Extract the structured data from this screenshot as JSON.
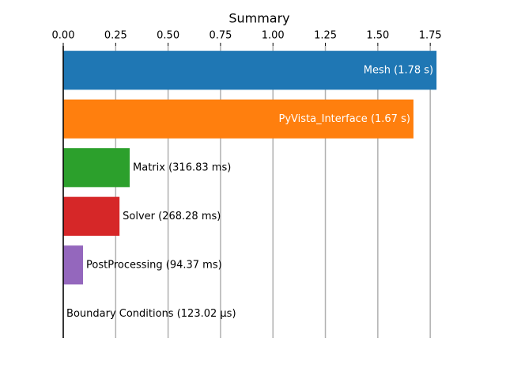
{
  "chart_data": {
    "type": "barh",
    "title": "Summary",
    "values": [
      1.78,
      1.67,
      0.31683,
      0.26828,
      0.09437,
      0.000123
    ],
    "value_labels": [
      "Mesh (1.78 s)",
      "PyVista_Interface (1.67 s)",
      "Matrix (316.83 ms)",
      "Solver (268.28 ms)",
      "PostProcessing (94.37 ms)",
      "Boundary Conditions (123.02 µs)"
    ],
    "colors": [
      "#1f77b4",
      "#ff7f0e",
      "#2ca02c",
      "#d62728",
      "#9467bd",
      "#8c564b"
    ],
    "xlim": [
      0,
      1.87
    ],
    "xticks": [
      {
        "value": 0,
        "label": "0.00"
      },
      {
        "value": 0.25,
        "label": "0.25"
      },
      {
        "value": 0.5,
        "label": "0.50"
      },
      {
        "value": 0.75,
        "label": "0.75"
      },
      {
        "value": 1,
        "label": "1.00"
      },
      {
        "value": 1.25,
        "label": "1.25"
      },
      {
        "value": 1.5,
        "label": "1.50"
      },
      {
        "value": 1.75,
        "label": "1.75"
      }
    ],
    "grid": true
  }
}
